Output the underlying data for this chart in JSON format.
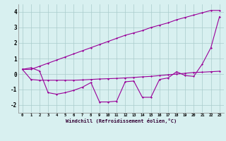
{
  "xlabel": "Windchill (Refroidissement éolien,°C)",
  "x": [
    0,
    1,
    2,
    3,
    4,
    5,
    6,
    7,
    8,
    9,
    10,
    11,
    12,
    13,
    14,
    15,
    16,
    17,
    18,
    19,
    20,
    21,
    22,
    23
  ],
  "temp": [
    0.3,
    0.3,
    0.5,
    0.7,
    0.9,
    1.1,
    1.3,
    1.5,
    1.7,
    1.9,
    2.1,
    2.3,
    2.5,
    2.65,
    2.8,
    3.0,
    3.15,
    3.3,
    3.5,
    3.65,
    3.8,
    3.95,
    4.1,
    4.1
  ],
  "windchill": [
    0.3,
    0.4,
    0.2,
    -1.2,
    -1.3,
    -1.2,
    -1.05,
    -0.85,
    -0.55,
    -1.8,
    -1.8,
    -1.75,
    -0.5,
    -0.45,
    -1.5,
    -1.5,
    -0.35,
    -0.25,
    0.15,
    -0.1,
    -0.15,
    0.65,
    1.7,
    3.7
  ],
  "flat": [
    0.3,
    -0.35,
    -0.4,
    -0.4,
    -0.4,
    -0.4,
    -0.4,
    -0.38,
    -0.35,
    -0.32,
    -0.3,
    -0.28,
    -0.25,
    -0.22,
    -0.18,
    -0.15,
    -0.1,
    -0.05,
    0.0,
    0.05,
    0.1,
    0.12,
    0.15,
    0.18
  ],
  "bg_color": "#d8f0f0",
  "line_color": "#990099",
  "grid_color": "#aacccc",
  "ylim": [
    -2.5,
    4.5
  ],
  "yticks": [
    -2,
    -1,
    0,
    1,
    2,
    3,
    4
  ],
  "xticks": [
    0,
    1,
    2,
    3,
    4,
    5,
    6,
    7,
    8,
    9,
    10,
    11,
    12,
    13,
    14,
    15,
    16,
    17,
    18,
    19,
    20,
    21,
    22,
    23
  ]
}
